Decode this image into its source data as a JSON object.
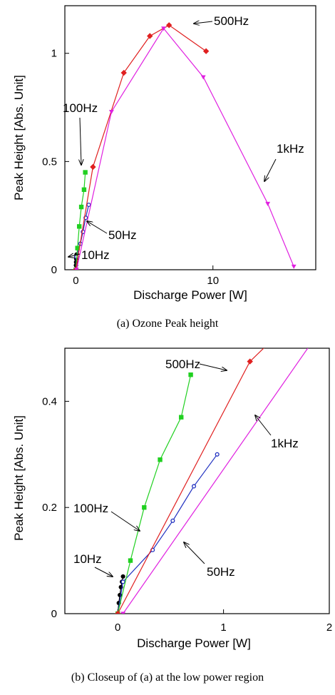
{
  "chart_data": [
    {
      "type": "line",
      "caption": "(a) Ozone Peak height",
      "xlabel": "Discharge Power [W]",
      "ylabel": "Peak Height [Abs. Unit]",
      "xlim": [
        -0.8,
        17.5
      ],
      "ylim": [
        0,
        1.22
      ],
      "xticks": [
        0,
        10
      ],
      "xtick_labels": [
        "0",
        "10"
      ],
      "yticks": [
        0,
        0.5,
        1
      ],
      "ytick_labels": [
        "0",
        "0.5",
        "1"
      ],
      "grid": false,
      "series": [
        {
          "name": "10Hz",
          "color": "#000000",
          "marker": "circle",
          "x": [
            0.0,
            0.01,
            0.02,
            0.03,
            0.04,
            0.05
          ],
          "y": [
            0.0,
            0.02,
            0.035,
            0.05,
            0.06,
            0.07
          ]
        },
        {
          "name": "50Hz",
          "color": "#2030c0",
          "marker": "open-circle",
          "x": [
            0.0,
            0.05,
            0.33,
            0.52,
            0.72,
            0.94
          ],
          "y": [
            0.0,
            0.06,
            0.12,
            0.175,
            0.24,
            0.3
          ]
        },
        {
          "name": "100Hz",
          "color": "#20d020",
          "marker": "square",
          "x": [
            0.0,
            0.12,
            0.25,
            0.4,
            0.6,
            0.69
          ],
          "y": [
            0.0,
            0.1,
            0.2,
            0.29,
            0.37,
            0.45
          ]
        },
        {
          "name": "500Hz",
          "color": "#e02020",
          "marker": "diamond",
          "x": [
            0.0,
            1.25,
            3.5,
            5.4,
            6.8,
            9.5
          ],
          "y": [
            0.0,
            0.475,
            0.91,
            1.08,
            1.13,
            1.01
          ]
        },
        {
          "name": "1kHz",
          "color": "#e020e0",
          "marker": "triangle-down",
          "x": [
            0.05,
            2.6,
            6.4,
            9.3,
            14.0,
            15.9
          ],
          "y": [
            0.0,
            0.73,
            1.115,
            0.89,
            0.305,
            0.015
          ]
        }
      ],
      "annotations": [
        {
          "text": "500Hz"
        },
        {
          "text": "100Hz"
        },
        {
          "text": "1kHz"
        },
        {
          "text": "50Hz"
        },
        {
          "text": "10Hz"
        }
      ]
    },
    {
      "type": "line",
      "caption": "(b) Closeup of (a) at the low power region",
      "xlabel": "Discharge Power [W]",
      "ylabel": "Peak Height [Abs. Unit]",
      "xlim": [
        -0.5,
        2
      ],
      "ylim": [
        0,
        0.5
      ],
      "xticks": [
        0,
        1,
        2
      ],
      "xtick_labels": [
        "0",
        "1",
        "2"
      ],
      "yticks": [
        0,
        0.2,
        0.4
      ],
      "ytick_labels": [
        "0",
        "0.2",
        "0.4"
      ],
      "grid": false,
      "series": [
        {
          "name": "10Hz",
          "color": "#000000",
          "marker": "circle",
          "x": [
            0.0,
            0.01,
            0.02,
            0.03,
            0.04,
            0.05
          ],
          "y": [
            0.0,
            0.02,
            0.035,
            0.05,
            0.06,
            0.07
          ]
        },
        {
          "name": "50Hz",
          "color": "#2030c0",
          "marker": "open-circle",
          "x": [
            0.0,
            0.05,
            0.33,
            0.52,
            0.72,
            0.94
          ],
          "y": [
            0.0,
            0.06,
            0.12,
            0.175,
            0.24,
            0.3
          ]
        },
        {
          "name": "100Hz",
          "color": "#20d020",
          "marker": "square",
          "x": [
            0.0,
            0.12,
            0.25,
            0.4,
            0.6,
            0.69
          ],
          "y": [
            0.0,
            0.1,
            0.2,
            0.29,
            0.37,
            0.45
          ]
        },
        {
          "name": "500Hz",
          "color": "#e02020",
          "marker": "diamond",
          "x": [
            0.0,
            1.25,
            3.5
          ],
          "y": [
            0.0,
            0.475,
            0.91
          ]
        },
        {
          "name": "1kHz",
          "color": "#e020e0",
          "marker": "triangle-down",
          "x": [
            0.05,
            2.6
          ],
          "y": [
            0.0,
            0.73
          ]
        }
      ],
      "annotations": [
        {
          "text": "500Hz"
        },
        {
          "text": "100Hz"
        },
        {
          "text": "1kHz"
        },
        {
          "text": "50Hz"
        },
        {
          "text": "10Hz"
        }
      ]
    }
  ]
}
